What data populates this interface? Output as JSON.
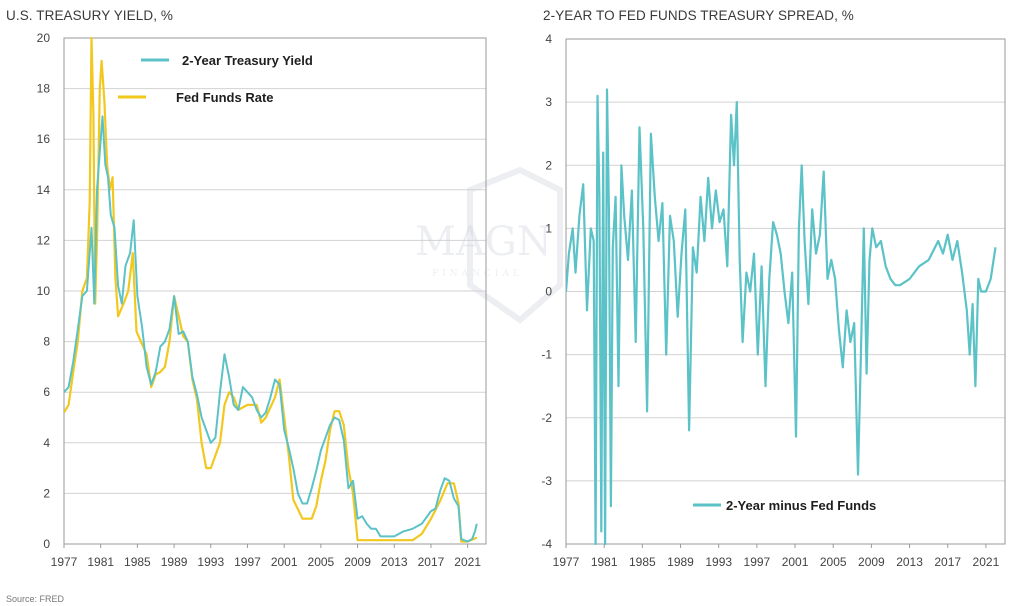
{
  "source": "Source: FRED",
  "watermark": {
    "brand": "MAGN",
    "tagline": "FINANCIAL"
  },
  "colors": {
    "treasury": "#5bc2c7",
    "fedfunds": "#f2c81f",
    "grid": "#d2d2d2",
    "axis": "#9a9a9a"
  },
  "chart_data": [
    {
      "type": "line",
      "title": "U.S. TREASURY YIELD, %",
      "xlabel": "",
      "ylabel": "",
      "xlim": [
        1977,
        2023
      ],
      "ylim": [
        0,
        20
      ],
      "yticks": [
        0,
        2,
        4,
        6,
        8,
        10,
        12,
        14,
        16,
        18,
        20
      ],
      "xticks": [
        1977,
        1981,
        1985,
        1989,
        1993,
        1997,
        2001,
        2005,
        2009,
        2013,
        2017,
        2021
      ],
      "legend": "top-left inside",
      "series": [
        {
          "name": "2-Year Treasury Yield",
          "color": "#5bc2c7",
          "x": [
            1977.0,
            1977.5,
            1978.0,
            1978.5,
            1979.0,
            1979.5,
            1980.0,
            1980.3,
            1980.6,
            1980.9,
            1981.2,
            1981.5,
            1981.8,
            1982.1,
            1982.5,
            1982.9,
            1983.3,
            1983.7,
            1984.2,
            1984.6,
            1985.0,
            1985.5,
            1986.0,
            1986.5,
            1987.0,
            1987.5,
            1988.0,
            1988.5,
            1989.0,
            1989.5,
            1990.0,
            1990.5,
            1991.0,
            1991.5,
            1992.0,
            1992.5,
            1993.0,
            1993.5,
            1994.0,
            1994.5,
            1995.0,
            1995.5,
            1996.0,
            1996.5,
            1997.0,
            1997.5,
            1998.0,
            1998.5,
            1999.0,
            1999.5,
            2000.0,
            2000.5,
            2001.0,
            2001.5,
            2002.0,
            2002.5,
            2003.0,
            2003.5,
            2004.0,
            2004.5,
            2005.0,
            2005.5,
            2006.0,
            2006.5,
            2007.0,
            2007.5,
            2008.0,
            2008.5,
            2009.0,
            2009.5,
            2010.0,
            2010.5,
            2011.0,
            2011.5,
            2012.0,
            2013.0,
            2014.0,
            2015.0,
            2016.0,
            2017.0,
            2017.5,
            2018.0,
            2018.5,
            2019.0,
            2019.5,
            2020.0,
            2020.3,
            2020.6,
            2021.0,
            2021.5,
            2021.8,
            2022.0
          ],
          "values": [
            6.0,
            6.2,
            7.2,
            8.5,
            9.8,
            10.0,
            12.5,
            9.5,
            14.0,
            15.5,
            16.9,
            15.0,
            14.5,
            13.0,
            12.5,
            10.2,
            9.5,
            11.0,
            11.5,
            12.8,
            9.8,
            8.6,
            7.0,
            6.3,
            6.8,
            7.8,
            8.0,
            8.5,
            9.8,
            8.3,
            8.4,
            8.0,
            6.6,
            5.9,
            5.0,
            4.5,
            4.0,
            4.2,
            6.0,
            7.5,
            6.6,
            5.5,
            5.3,
            6.2,
            6.0,
            5.8,
            5.3,
            5.0,
            5.2,
            5.8,
            6.5,
            6.3,
            4.5,
            3.8,
            3.0,
            2.0,
            1.6,
            1.6,
            2.2,
            2.9,
            3.7,
            4.2,
            4.7,
            5.0,
            4.9,
            4.1,
            2.2,
            2.5,
            1.0,
            1.1,
            0.8,
            0.6,
            0.6,
            0.3,
            0.3,
            0.3,
            0.5,
            0.6,
            0.8,
            1.3,
            1.4,
            2.1,
            2.6,
            2.5,
            1.8,
            1.5,
            0.2,
            0.15,
            0.1,
            0.2,
            0.5,
            0.8
          ]
        },
        {
          "name": "Fed Funds Rate",
          "color": "#f2c81f",
          "x": [
            1977.0,
            1977.5,
            1978.0,
            1978.5,
            1979.0,
            1979.5,
            1979.8,
            1980.0,
            1980.2,
            1980.4,
            1980.6,
            1980.9,
            1981.1,
            1981.4,
            1981.7,
            1982.0,
            1982.3,
            1982.6,
            1982.9,
            1983.5,
            1984.0,
            1984.5,
            1984.9,
            1985.5,
            1986.0,
            1986.5,
            1987.0,
            1987.5,
            1988.0,
            1988.5,
            1989.0,
            1989.5,
            1990.0,
            1990.5,
            1991.0,
            1991.5,
            1992.0,
            1992.5,
            1993.0,
            1994.0,
            1994.5,
            1995.0,
            1995.5,
            1996.0,
            1997.0,
            1998.0,
            1998.5,
            1999.0,
            2000.0,
            2000.5,
            2001.0,
            2001.5,
            2002.0,
            2003.0,
            2004.0,
            2004.5,
            2005.0,
            2005.5,
            2006.0,
            2006.5,
            2007.0,
            2007.5,
            2008.0,
            2008.5,
            2009.0,
            2012.0,
            2015.0,
            2016.0,
            2017.0,
            2018.0,
            2018.8,
            2019.5,
            2020.0,
            2020.3,
            2021.0,
            2022.0
          ],
          "values": [
            5.2,
            5.5,
            6.8,
            8.0,
            10.0,
            10.5,
            13.5,
            20.0,
            17.0,
            9.5,
            12.0,
            18.0,
            19.1,
            17.5,
            15.0,
            14.0,
            14.5,
            10.5,
            9.0,
            9.5,
            10.0,
            11.5,
            8.4,
            7.9,
            7.5,
            6.2,
            6.7,
            6.8,
            7.0,
            8.0,
            9.8,
            9.0,
            8.2,
            8.0,
            6.5,
            5.7,
            4.0,
            3.0,
            3.0,
            4.0,
            5.5,
            6.0,
            5.8,
            5.3,
            5.5,
            5.5,
            4.8,
            5.0,
            5.8,
            6.5,
            5.0,
            3.5,
            1.75,
            1.0,
            1.0,
            1.5,
            2.5,
            3.3,
            4.5,
            5.25,
            5.25,
            4.7,
            3.0,
            2.0,
            0.15,
            0.15,
            0.15,
            0.4,
            1.0,
            1.7,
            2.4,
            2.4,
            1.6,
            0.1,
            0.1,
            0.25
          ]
        }
      ]
    },
    {
      "type": "line",
      "title": "2-YEAR TO FED FUNDS TREASURY SPREAD, %",
      "xlabel": "",
      "ylabel": "",
      "xlim": [
        1977,
        2023
      ],
      "ylim": [
        -4,
        4
      ],
      "yticks": [
        -4,
        -3,
        -2,
        -1,
        0,
        1,
        2,
        3,
        4
      ],
      "xticks": [
        1977,
        1981,
        1985,
        1989,
        1993,
        1997,
        2001,
        2005,
        2009,
        2013,
        2017,
        2021
      ],
      "legend": "bottom-center inside",
      "series": [
        {
          "name": "2-Year minus Fed Funds",
          "color": "#5bc2c7",
          "x": [
            1977.0,
            1977.3,
            1977.7,
            1978.0,
            1978.4,
            1978.8,
            1979.2,
            1979.6,
            1979.9,
            1980.1,
            1980.3,
            1980.5,
            1980.7,
            1980.9,
            1981.1,
            1981.3,
            1981.5,
            1981.7,
            1981.9,
            1982.2,
            1982.5,
            1982.8,
            1983.1,
            1983.5,
            1983.9,
            1984.3,
            1984.7,
            1985.1,
            1985.5,
            1985.9,
            1986.3,
            1986.7,
            1987.1,
            1987.5,
            1987.9,
            1988.3,
            1988.7,
            1989.1,
            1989.5,
            1989.9,
            1990.3,
            1990.7,
            1991.1,
            1991.5,
            1991.9,
            1992.3,
            1992.7,
            1993.1,
            1993.5,
            1993.9,
            1994.3,
            1994.6,
            1994.9,
            1995.2,
            1995.5,
            1995.9,
            1996.3,
            1996.7,
            1997.1,
            1997.5,
            1997.9,
            1998.3,
            1998.7,
            1999.1,
            1999.5,
            1999.9,
            2000.3,
            2000.7,
            2001.1,
            2001.4,
            2001.7,
            2002.0,
            2002.4,
            2002.8,
            2003.2,
            2003.6,
            2004.0,
            2004.4,
            2004.8,
            2005.2,
            2005.6,
            2006.0,
            2006.4,
            2006.8,
            2007.2,
            2007.6,
            2007.9,
            2008.2,
            2008.5,
            2008.8,
            2009.1,
            2009.5,
            2010.0,
            2010.5,
            2011.0,
            2011.5,
            2012.0,
            2013.0,
            2014.0,
            2015.0,
            2016.0,
            2016.5,
            2017.0,
            2017.5,
            2018.0,
            2018.5,
            2019.0,
            2019.3,
            2019.6,
            2019.9,
            2020.2,
            2020.5,
            2021.0,
            2021.5,
            2022.0
          ],
          "values": [
            0.0,
            0.6,
            1.0,
            0.3,
            1.2,
            1.7,
            -0.3,
            1.0,
            0.8,
            -4.0,
            3.1,
            1.5,
            -3.8,
            2.2,
            -4.1,
            3.2,
            1.3,
            -3.4,
            0.7,
            1.5,
            -1.5,
            2.0,
            1.2,
            0.5,
            1.6,
            -0.8,
            2.6,
            1.0,
            -1.9,
            2.5,
            1.5,
            0.8,
            1.4,
            -1.0,
            1.2,
            0.8,
            -0.4,
            0.6,
            1.3,
            -2.2,
            0.7,
            0.3,
            1.5,
            0.8,
            1.8,
            1.0,
            1.6,
            1.1,
            1.3,
            0.4,
            2.8,
            2.0,
            3.0,
            0.5,
            -0.8,
            0.3,
            0.0,
            0.6,
            -1.0,
            0.4,
            -1.5,
            0.2,
            1.1,
            0.9,
            0.6,
            0.0,
            -0.5,
            0.3,
            -2.3,
            1.0,
            2.0,
            0.8,
            -0.2,
            1.3,
            0.6,
            0.9,
            1.9,
            0.2,
            0.5,
            0.2,
            -0.6,
            -1.2,
            -0.3,
            -0.8,
            -0.5,
            -2.9,
            -1.0,
            1.0,
            -1.3,
            0.5,
            1.0,
            0.7,
            0.8,
            0.4,
            0.2,
            0.1,
            0.1,
            0.2,
            0.4,
            0.5,
            0.8,
            0.6,
            0.9,
            0.5,
            0.8,
            0.3,
            -0.3,
            -1.0,
            -0.2,
            -1.5,
            0.2,
            0.0,
            0.0,
            0.2,
            0.7
          ]
        }
      ]
    }
  ]
}
